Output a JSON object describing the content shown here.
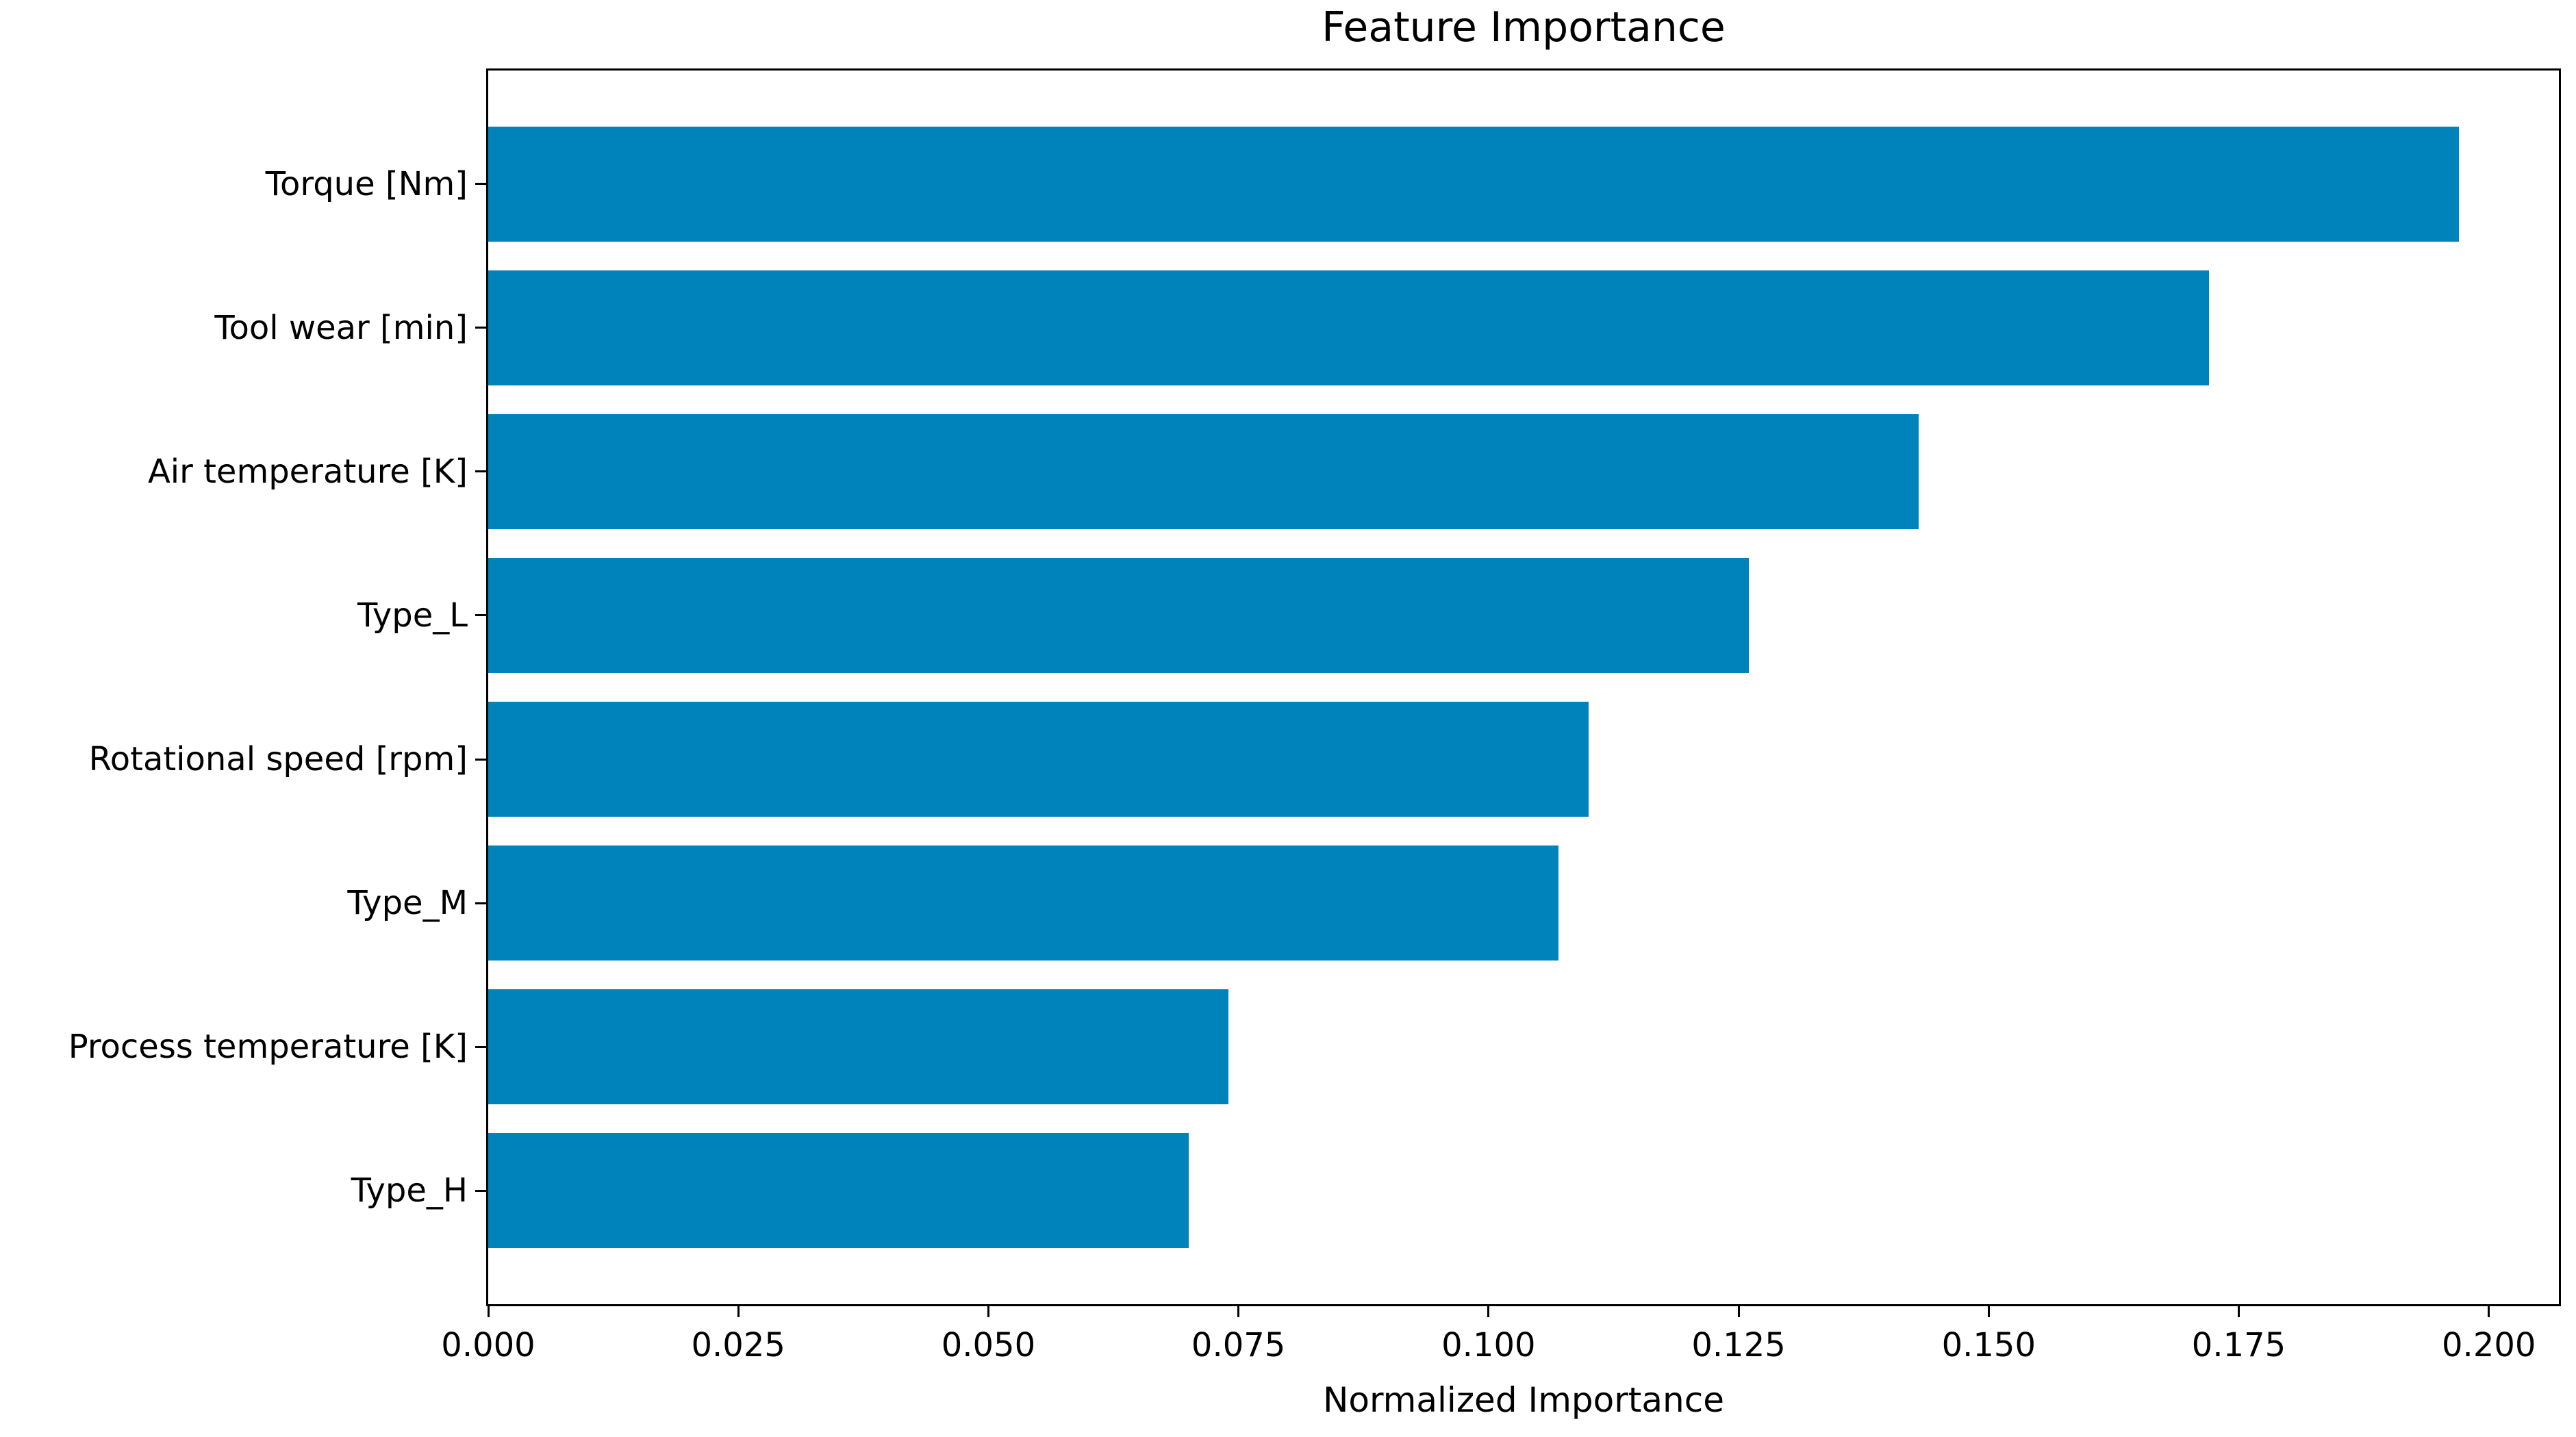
{
  "chart_data": {
    "type": "bar",
    "orientation": "horizontal",
    "title": "Feature Importance",
    "xlabel": "Normalized Importance",
    "categories": [
      "Torque [Nm]",
      "Tool wear [min]",
      "Air temperature [K]",
      "Type_L",
      "Rotational speed [rpm]",
      "Type_M",
      "Process temperature [K]",
      "Type_H"
    ],
    "values": [
      0.197,
      0.172,
      0.143,
      0.126,
      0.11,
      0.107,
      0.074,
      0.07
    ],
    "xlim": [
      0,
      0.207
    ],
    "xticks": [
      0.0,
      0.025,
      0.05,
      0.075,
      0.1,
      0.125,
      0.15,
      0.175,
      0.2
    ],
    "xtick_labels": [
      "0.000",
      "0.025",
      "0.050",
      "0.075",
      "0.100",
      "0.125",
      "0.150",
      "0.175",
      "0.200"
    ],
    "grid": false,
    "legend": "none",
    "bar_color": "#0082ba",
    "text_color": "#000000",
    "spine_color": "#000000"
  }
}
